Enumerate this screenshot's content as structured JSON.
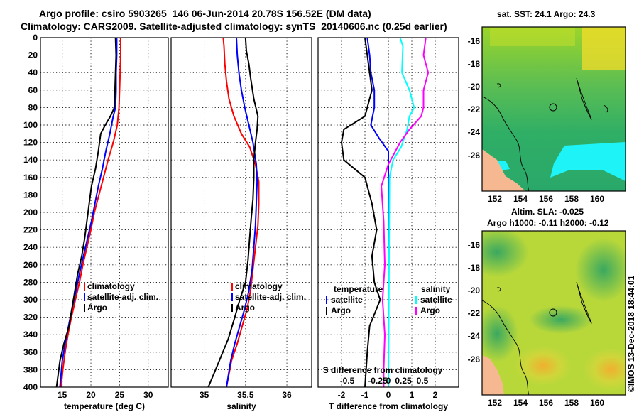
{
  "header": {
    "line1": "Argo profile: csiro 5903265_146 06-Jun-2014 20.78S 156.52E (DM data)",
    "line2": "Climatology: CARS2009. Satellite-adjusted climatology: synTS_20140606.nc (0.25d earlier)"
  },
  "colors": {
    "climatology": "#ff0000",
    "satellite": "#0000ff",
    "argo": "#000000",
    "sat_salinity": "#00ffff",
    "clim_salinity": "#ff00ff"
  },
  "chart_data": [
    {
      "type": "line",
      "id": "temperature",
      "xlabel": "temperature (deg C)",
      "ylabel": "",
      "xlim": [
        11.2,
        33.5
      ],
      "ylim": [
        400,
        0
      ],
      "xticks": [
        15,
        20,
        25,
        30
      ],
      "yticks": [
        0,
        20,
        40,
        60,
        80,
        100,
        120,
        140,
        160,
        180,
        200,
        220,
        240,
        260,
        280,
        300,
        320,
        340,
        360,
        380,
        400
      ],
      "legend": [
        "climatology",
        "satellite-adj. clim.",
        "Argo"
      ],
      "series": [
        {
          "name": "climatology",
          "color": "#ff0000",
          "points": [
            [
              25.2,
              0
            ],
            [
              25.2,
              20
            ],
            [
              25.1,
              40
            ],
            [
              25.0,
              60
            ],
            [
              24.9,
              80
            ],
            [
              24.6,
              100
            ],
            [
              23.9,
              120
            ],
            [
              23.0,
              140
            ],
            [
              22.2,
              160
            ],
            [
              21.4,
              180
            ],
            [
              20.6,
              200
            ],
            [
              20.0,
              220
            ],
            [
              19.3,
              240
            ],
            [
              18.6,
              260
            ],
            [
              18.0,
              280
            ],
            [
              17.3,
              300
            ],
            [
              16.6,
              320
            ],
            [
              16.0,
              340
            ],
            [
              15.5,
              360
            ],
            [
              15.1,
              380
            ],
            [
              14.8,
              400
            ]
          ]
        },
        {
          "name": "satellite-adj. clim.",
          "color": "#0000ff",
          "points": [
            [
              24.5,
              0
            ],
            [
              24.5,
              20
            ],
            [
              24.4,
              40
            ],
            [
              24.4,
              60
            ],
            [
              24.3,
              80
            ],
            [
              23.9,
              90
            ],
            [
              23.3,
              110
            ],
            [
              22.6,
              130
            ],
            [
              22.0,
              150
            ],
            [
              21.3,
              170
            ],
            [
              20.7,
              190
            ],
            [
              20.1,
              210
            ],
            [
              19.4,
              230
            ],
            [
              18.7,
              250
            ],
            [
              18.0,
              270
            ],
            [
              17.4,
              290
            ],
            [
              16.7,
              310
            ],
            [
              16.1,
              330
            ],
            [
              15.5,
              350
            ],
            [
              15.0,
              370
            ],
            [
              14.6,
              400
            ]
          ]
        },
        {
          "name": "Argo",
          "color": "#000000",
          "points": [
            [
              24.3,
              0
            ],
            [
              24.4,
              20
            ],
            [
              24.3,
              40
            ],
            [
              24.2,
              60
            ],
            [
              24.1,
              80
            ],
            [
              23.4,
              90
            ],
            [
              22.5,
              100
            ],
            [
              21.7,
              110
            ],
            [
              21.3,
              130
            ],
            [
              20.8,
              150
            ],
            [
              20.1,
              170
            ],
            [
              19.7,
              190
            ],
            [
              19.3,
              210
            ],
            [
              18.9,
              230
            ],
            [
              18.4,
              250
            ],
            [
              17.7,
              270
            ],
            [
              17.2,
              290
            ],
            [
              16.7,
              310
            ],
            [
              16.2,
              330
            ],
            [
              15.3,
              350
            ],
            [
              14.6,
              370
            ],
            [
              14.2,
              390
            ],
            [
              14.0,
              400
            ]
          ]
        }
      ]
    },
    {
      "type": "line",
      "id": "salinity",
      "xlabel": "salinity",
      "ylabel": "",
      "xlim": [
        34.6,
        36.3
      ],
      "ylim": [
        400,
        0
      ],
      "xticks": [
        35,
        35.5,
        36
      ],
      "legend": [
        "climatology",
        "satellite-adj. clim.",
        "Argo"
      ],
      "series": [
        {
          "name": "climatology",
          "color": "#ff0000",
          "points": [
            [
              35.23,
              0
            ],
            [
              35.24,
              10
            ],
            [
              35.25,
              30
            ],
            [
              35.27,
              50
            ],
            [
              35.3,
              70
            ],
            [
              35.36,
              90
            ],
            [
              35.45,
              110
            ],
            [
              35.55,
              125
            ],
            [
              35.62,
              145
            ],
            [
              35.66,
              165
            ],
            [
              35.66,
              190
            ],
            [
              35.65,
              215
            ],
            [
              35.62,
              240
            ],
            [
              35.59,
              265
            ],
            [
              35.56,
              290
            ],
            [
              35.52,
              310
            ],
            [
              35.46,
              330
            ],
            [
              35.4,
              350
            ],
            [
              35.33,
              370
            ],
            [
              35.27,
              400
            ]
          ]
        },
        {
          "name": "satellite-adj. clim.",
          "color": "#0000ff",
          "points": [
            [
              35.39,
              0
            ],
            [
              35.4,
              20
            ],
            [
              35.42,
              40
            ],
            [
              35.45,
              60
            ],
            [
              35.49,
              80
            ],
            [
              35.54,
              100
            ],
            [
              35.59,
              120
            ],
            [
              35.63,
              145
            ],
            [
              35.64,
              165
            ],
            [
              35.63,
              190
            ],
            [
              35.62,
              215
            ],
            [
              35.6,
              240
            ],
            [
              35.58,
              265
            ],
            [
              35.54,
              290
            ],
            [
              35.49,
              310
            ],
            [
              35.43,
              330
            ],
            [
              35.37,
              350
            ],
            [
              35.32,
              370
            ],
            [
              35.27,
              400
            ]
          ]
        },
        {
          "name": "Argo",
          "color": "#000000",
          "points": [
            [
              35.5,
              0
            ],
            [
              35.51,
              15
            ],
            [
              35.54,
              30
            ],
            [
              35.56,
              45
            ],
            [
              35.6,
              70
            ],
            [
              35.65,
              90
            ],
            [
              35.64,
              105
            ],
            [
              35.62,
              120
            ],
            [
              35.6,
              140
            ],
            [
              35.6,
              160
            ],
            [
              35.59,
              185
            ],
            [
              35.57,
              205
            ],
            [
              35.55,
              230
            ],
            [
              35.53,
              255
            ],
            [
              35.5,
              280
            ],
            [
              35.43,
              300
            ],
            [
              35.37,
              320
            ],
            [
              35.29,
              345
            ],
            [
              35.16,
              375
            ],
            [
              35.05,
              400
            ]
          ]
        }
      ]
    },
    {
      "type": "line",
      "id": "differences",
      "xlabel": "T difference from climatology",
      "ylabel": "",
      "xlim": [
        -3,
        3
      ],
      "ylim": [
        400,
        0
      ],
      "xticks": [
        -2,
        -1,
        0,
        1,
        2
      ],
      "secondary_xlabel": "S difference from climatology",
      "secondary_xticks": [
        "-0.5",
        "-0.25",
        "0",
        "0.25",
        "0.5"
      ],
      "legend_temperature_title": "temperature",
      "legend_salinity_title": "salinity",
      "legend_temperature": [
        "satellite",
        "Argo"
      ],
      "legend_salinity": [
        "satellite",
        "Argo"
      ],
      "series": [
        {
          "name": "T satellite",
          "color": "#0000ff",
          "points": [
            [
              -0.9,
              0
            ],
            [
              -0.8,
              20
            ],
            [
              -0.75,
              40
            ],
            [
              -0.6,
              60
            ],
            [
              -0.6,
              80
            ],
            [
              -0.75,
              100
            ],
            [
              -0.4,
              115
            ],
            [
              0.0,
              130
            ],
            [
              0.0,
              400
            ]
          ]
        },
        {
          "name": "T Argo",
          "color": "#000000",
          "points": [
            [
              -1.0,
              0
            ],
            [
              -0.9,
              20
            ],
            [
              -0.8,
              40
            ],
            [
              -0.7,
              60
            ],
            [
              -0.9,
              80
            ],
            [
              -1.0,
              90
            ],
            [
              -1.9,
              105
            ],
            [
              -2.0,
              120
            ],
            [
              -1.9,
              140
            ],
            [
              -1.0,
              160
            ],
            [
              -0.7,
              190
            ],
            [
              -0.5,
              220
            ],
            [
              -0.7,
              250
            ],
            [
              -0.6,
              280
            ],
            [
              -0.35,
              300
            ],
            [
              -0.8,
              330
            ],
            [
              -0.9,
              360
            ],
            [
              -1.0,
              400
            ]
          ]
        },
        {
          "name": "S satellite",
          "color": "#00ffff",
          "points": [
            [
              0.5,
              0
            ],
            [
              0.62,
              10
            ],
            [
              0.58,
              40
            ],
            [
              0.9,
              60
            ],
            [
              1.1,
              80
            ],
            [
              0.9,
              90
            ],
            [
              0.8,
              105
            ],
            [
              0.55,
              125
            ],
            [
              0.2,
              140
            ],
            [
              0.05,
              160
            ],
            [
              0.0,
              400
            ]
          ]
        },
        {
          "name": "S Argo",
          "color": "#ff00ff",
          "points": [
            [
              1.6,
              0
            ],
            [
              1.5,
              20
            ],
            [
              1.7,
              40
            ],
            [
              1.5,
              60
            ],
            [
              1.5,
              80
            ],
            [
              1.4,
              90
            ],
            [
              0.9,
              105
            ],
            [
              0.5,
              120
            ],
            [
              0.0,
              145
            ],
            [
              -0.3,
              170
            ],
            [
              -0.2,
              210
            ],
            [
              -0.15,
              260
            ],
            [
              -0.25,
              300
            ],
            [
              -0.15,
              340
            ],
            [
              -0.2,
              380
            ],
            [
              -0.2,
              400
            ]
          ]
        }
      ]
    }
  ],
  "maps": {
    "sst": {
      "title": "sat. SST: 24.1 Argo: 24.3",
      "yticks": [
        "-16",
        "-18",
        "-20",
        "-22",
        "-24",
        "-26"
      ],
      "xticks": [
        "152",
        "154",
        "156",
        "158",
        "160"
      ]
    },
    "sla": {
      "title1": "Altim. SLA: -0.025",
      "title2": "Argo h1000: -0.11 h2000: -0.12",
      "yticks": [
        "-16",
        "-18",
        "-20",
        "-22",
        "-24",
        "-26"
      ],
      "xticks": [
        "152",
        "154",
        "156",
        "158",
        "160"
      ]
    }
  },
  "footer": {
    "credit": "©IMOS 13-Dec-2018 18:44:01"
  }
}
